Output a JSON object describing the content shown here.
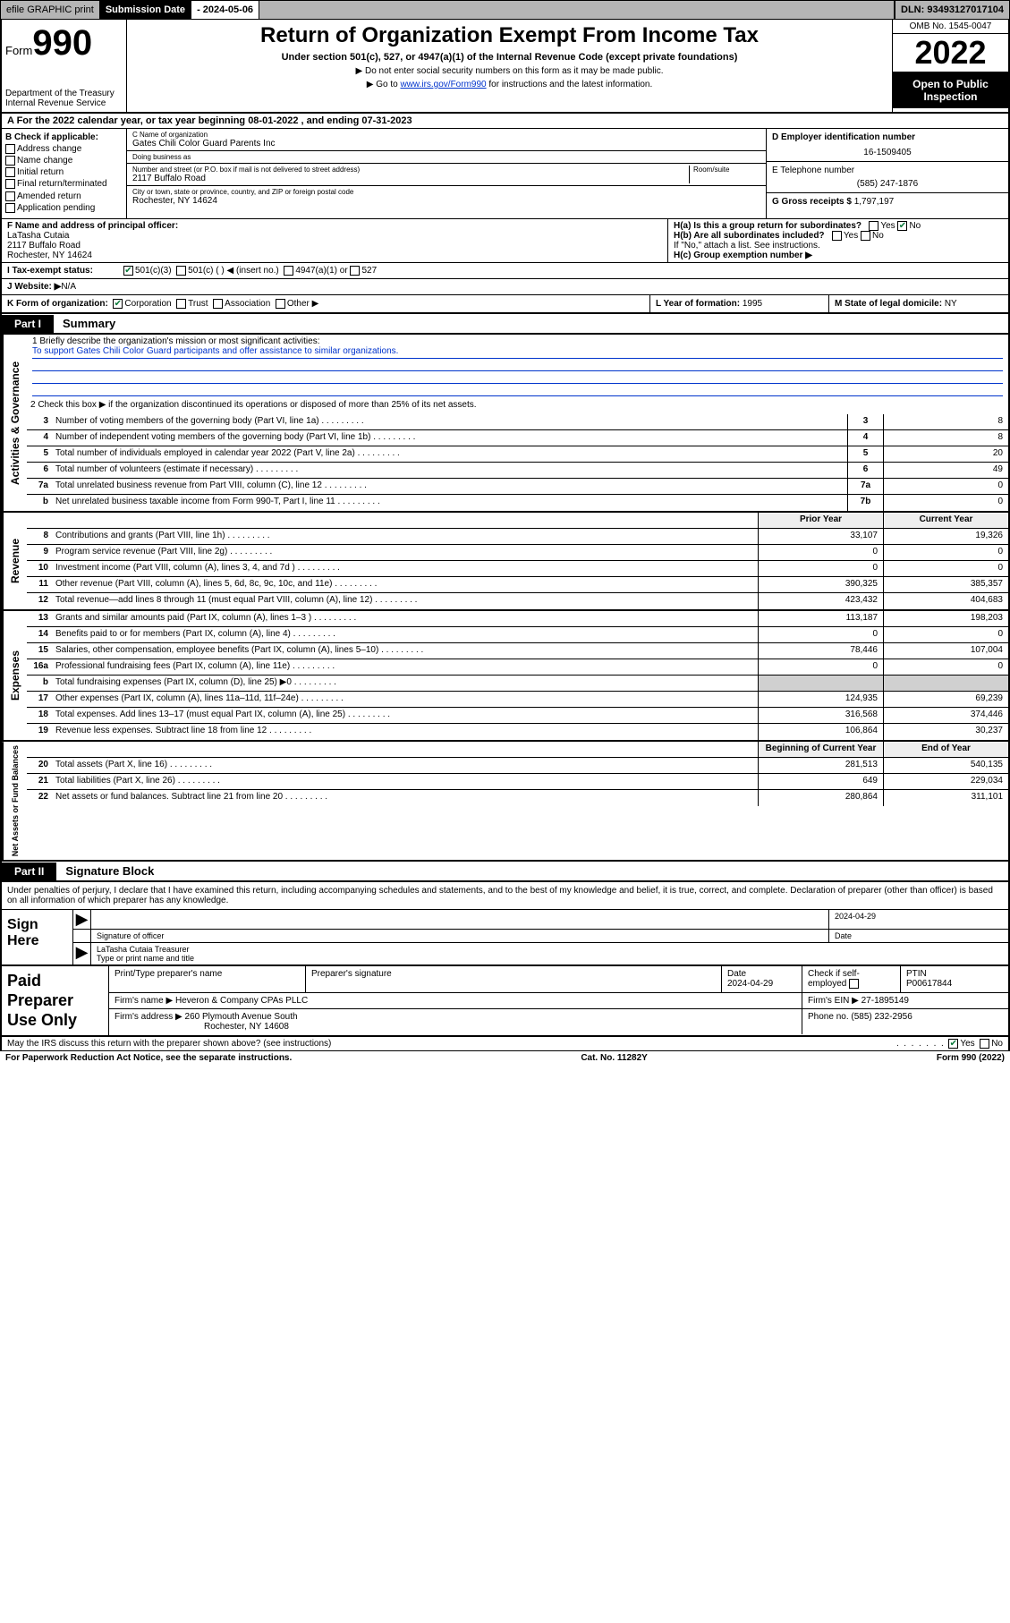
{
  "topbar": {
    "efile": "efile GRAPHIC print",
    "subdate_label": "Submission Date ",
    "subdate_value": "- 2024-05-06",
    "dln": "DLN: 93493127017104"
  },
  "header": {
    "form_prefix": "Form",
    "form_number": "990",
    "dept": "Department of the Treasury",
    "irs": "Internal Revenue Service",
    "title": "Return of Organization Exempt From Income Tax",
    "subtitle": "Under section 501(c), 527, or 4947(a)(1) of the Internal Revenue Code (except private foundations)",
    "note1": "▶ Do not enter social security numbers on this form as it may be made public.",
    "note2_pre": "▶ Go to ",
    "note2_link": "www.irs.gov/Form990",
    "note2_post": " for instructions and the latest information.",
    "omb": "OMB No. 1545-0047",
    "year": "2022",
    "open": "Open to Public Inspection"
  },
  "row_a": "A For the 2022 calendar year, or tax year beginning 08-01-2022   , and ending 07-31-2023",
  "col_b": {
    "hdr": "B Check if applicable:",
    "opts": [
      "Address change",
      "Name change",
      "Initial return",
      "Final return/terminated",
      "Amended return",
      "Application pending"
    ]
  },
  "col_c": {
    "name_lbl": "C Name of organization",
    "name": "Gates Chili Color Guard Parents Inc",
    "dba_lbl": "Doing business as",
    "dba": "",
    "addr_lbl": "Number and street (or P.O. box if mail is not delivered to street address)",
    "room_lbl": "Room/suite",
    "addr": "2117 Buffalo Road",
    "city_lbl": "City or town, state or province, country, and ZIP or foreign postal code",
    "city": "Rochester, NY  14624"
  },
  "col_d": {
    "ein_lbl": "D Employer identification number",
    "ein": "16-1509405",
    "tel_lbl": "E Telephone number",
    "tel": "(585) 247-1876",
    "gross_lbl": "G Gross receipts $ ",
    "gross": "1,797,197"
  },
  "row_f": {
    "lbl": "F  Name and address of principal officer:",
    "name": "LaTasha Cutaia",
    "addr1": "2117 Buffalo Road",
    "addr2": "Rochester, NY  14624"
  },
  "row_h": {
    "ha": "H(a)  Is this a group return for subordinates?",
    "hb": "H(b)  Are all subordinates included?",
    "hb_note": "If \"No,\" attach a list. See instructions.",
    "hc": "H(c)  Group exemption number ▶"
  },
  "row_i": {
    "lbl": "I    Tax-exempt status:",
    "o1": "501(c)(3)",
    "o2": "501(c) (  ) ◀ (insert no.)",
    "o3": "4947(a)(1) or",
    "o4": "527"
  },
  "row_j": {
    "lbl": "J   Website: ▶ ",
    "val": "N/A"
  },
  "row_k": {
    "lbl": "K Form of organization:",
    "o1": "Corporation",
    "o2": "Trust",
    "o3": "Association",
    "o4": "Other ▶"
  },
  "row_l": {
    "lbl": "L Year of formation: ",
    "val": "1995"
  },
  "row_m": {
    "lbl": "M State of legal domicile: ",
    "val": "NY"
  },
  "part1": {
    "tag": "Part I",
    "title": "Summary"
  },
  "mission": {
    "line1": "1   Briefly describe the organization's mission or most significant activities:",
    "text": "To support Gates Chili Color Guard participants and offer assistance to similar organizations."
  },
  "line2": "2   Check this box ▶        if the organization discontinued its operations or disposed of more than 25% of its net assets.",
  "summary": {
    "side_labels": [
      "Activities & Governance",
      "Revenue",
      "Expenses",
      "Net Assets or Fund Balances"
    ],
    "rows_gov": [
      {
        "n": "3",
        "d": "Number of voting members of the governing body (Part VI, line 1a)",
        "box": "3",
        "v": "8"
      },
      {
        "n": "4",
        "d": "Number of independent voting members of the governing body (Part VI, line 1b)",
        "box": "4",
        "v": "8"
      },
      {
        "n": "5",
        "d": "Total number of individuals employed in calendar year 2022 (Part V, line 2a)",
        "box": "5",
        "v": "20"
      },
      {
        "n": "6",
        "d": "Total number of volunteers (estimate if necessary)",
        "box": "6",
        "v": "49"
      },
      {
        "n": "7a",
        "d": "Total unrelated business revenue from Part VIII, column (C), line 12",
        "box": "7a",
        "v": "0"
      },
      {
        "n": "b",
        "d": "Net unrelated business taxable income from Form 990-T, Part I, line 11",
        "box": "7b",
        "v": "0"
      }
    ],
    "col_hdr": {
      "prior": "Prior Year",
      "curr": "Current Year"
    },
    "rows_rev": [
      {
        "n": "8",
        "d": "Contributions and grants (Part VIII, line 1h)",
        "p": "33,107",
        "c": "19,326"
      },
      {
        "n": "9",
        "d": "Program service revenue (Part VIII, line 2g)",
        "p": "0",
        "c": "0"
      },
      {
        "n": "10",
        "d": "Investment income (Part VIII, column (A), lines 3, 4, and 7d )",
        "p": "0",
        "c": "0"
      },
      {
        "n": "11",
        "d": "Other revenue (Part VIII, column (A), lines 5, 6d, 8c, 9c, 10c, and 11e)",
        "p": "390,325",
        "c": "385,357"
      },
      {
        "n": "12",
        "d": "Total revenue—add lines 8 through 11 (must equal Part VIII, column (A), line 12)",
        "p": "423,432",
        "c": "404,683"
      }
    ],
    "rows_exp": [
      {
        "n": "13",
        "d": "Grants and similar amounts paid (Part IX, column (A), lines 1–3 )",
        "p": "113,187",
        "c": "198,203"
      },
      {
        "n": "14",
        "d": "Benefits paid to or for members (Part IX, column (A), line 4)",
        "p": "0",
        "c": "0"
      },
      {
        "n": "15",
        "d": "Salaries, other compensation, employee benefits (Part IX, column (A), lines 5–10)",
        "p": "78,446",
        "c": "107,004"
      },
      {
        "n": "16a",
        "d": "Professional fundraising fees (Part IX, column (A), line 11e)",
        "p": "0",
        "c": "0"
      },
      {
        "n": "b",
        "d": "Total fundraising expenses (Part IX, column (D), line 25) ▶0",
        "p": "grey",
        "c": "grey"
      },
      {
        "n": "17",
        "d": "Other expenses (Part IX, column (A), lines 11a–11d, 11f–24e)",
        "p": "124,935",
        "c": "69,239"
      },
      {
        "n": "18",
        "d": "Total expenses. Add lines 13–17 (must equal Part IX, column (A), line 25)",
        "p": "316,568",
        "c": "374,446"
      },
      {
        "n": "19",
        "d": "Revenue less expenses. Subtract line 18 from line 12",
        "p": "106,864",
        "c": "30,237"
      }
    ],
    "col_hdr2": {
      "beg": "Beginning of Current Year",
      "end": "End of Year"
    },
    "rows_net": [
      {
        "n": "20",
        "d": "Total assets (Part X, line 16)",
        "p": "281,513",
        "c": "540,135"
      },
      {
        "n": "21",
        "d": "Total liabilities (Part X, line 26)",
        "p": "649",
        "c": "229,034"
      },
      {
        "n": "22",
        "d": "Net assets or fund balances. Subtract line 21 from line 20",
        "p": "280,864",
        "c": "311,101"
      }
    ]
  },
  "part2": {
    "tag": "Part II",
    "title": "Signature Block"
  },
  "sig_intro": "Under penalties of perjury, I declare that I have examined this return, including accompanying schedules and statements, and to the best of my knowledge and belief, it is true, correct, and complete. Declaration of preparer (other than officer) is based on all information of which preparer has any knowledge.",
  "sign_here": "Sign Here",
  "sig": {
    "date": "2024-04-29",
    "sig_lbl": "Signature of officer",
    "date_lbl": "Date",
    "name": "LaTasha Cutaia  Treasurer",
    "name_lbl": "Type or print name and title"
  },
  "paid_prep": "Paid Preparer Use Only",
  "prep": {
    "h1": "Print/Type preparer's name",
    "h2": "Preparer's signature",
    "h3": "Date",
    "h4": "Check         if self-employed",
    "h5": "PTIN",
    "date": "2024-04-29",
    "ptin": "P00617844",
    "firm_lbl": "Firm's name    ▶ ",
    "firm": "Heveron & Company CPAs PLLC",
    "ein_lbl": "Firm's EIN ▶ ",
    "ein": "27-1895149",
    "addr_lbl": "Firm's address ▶ ",
    "addr1": "260 Plymouth Avenue South",
    "addr2": "Rochester, NY  14608",
    "phone_lbl": "Phone no. ",
    "phone": "(585) 232-2956"
  },
  "footer": {
    "discuss": "May the IRS discuss this return with the preparer shown above? (see instructions)",
    "yes": "Yes",
    "no": "No",
    "pra": "For Paperwork Reduction Act Notice, see the separate instructions.",
    "cat": "Cat. No. 11282Y",
    "form": "Form 990 (2022)"
  }
}
